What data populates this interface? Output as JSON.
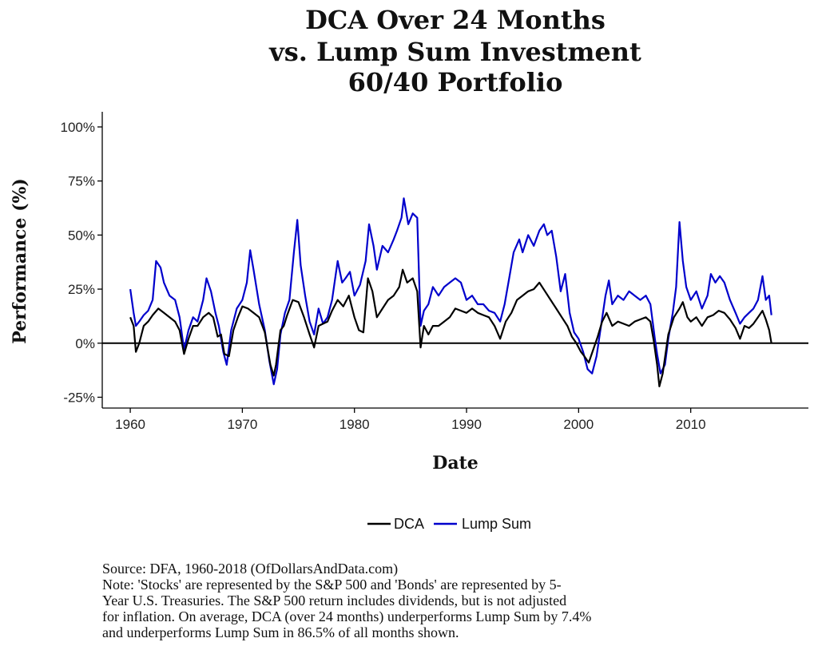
{
  "chart_data": {
    "type": "line",
    "title_lines": [
      "DCA Over 24 Months",
      "vs. Lump Sum Investment",
      "60/40 Portfolio"
    ],
    "xlabel": "Date",
    "ylabel": "Performance (%)",
    "xlim": [
      1957.5,
      2020.5
    ],
    "ylim": [
      -30,
      107
    ],
    "xticks": [
      1960,
      1970,
      1980,
      1990,
      2000,
      2010
    ],
    "xtick_labels": [
      "1960",
      "1970",
      "1980",
      "1990",
      "2000",
      "2010"
    ],
    "yticks": [
      -25,
      0,
      25,
      50,
      75,
      100
    ],
    "ytick_labels": [
      "-25%",
      "0%",
      "25%",
      "50%",
      "75%",
      "100%"
    ],
    "zero_line": true,
    "grid": false,
    "legend_position": "bottom",
    "series": [
      {
        "name": "DCA",
        "color": "#000000",
        "points": [
          [
            1960.0,
            12
          ],
          [
            1960.3,
            8
          ],
          [
            1960.5,
            -4
          ],
          [
            1960.8,
            0
          ],
          [
            1961.2,
            8
          ],
          [
            1961.6,
            10
          ],
          [
            1962.0,
            13
          ],
          [
            1962.5,
            16
          ],
          [
            1963.0,
            14
          ],
          [
            1963.5,
            12
          ],
          [
            1964.0,
            10
          ],
          [
            1964.4,
            6
          ],
          [
            1964.8,
            -5
          ],
          [
            1965.2,
            2
          ],
          [
            1965.6,
            8
          ],
          [
            1966.0,
            8
          ],
          [
            1966.5,
            12
          ],
          [
            1967.0,
            14
          ],
          [
            1967.4,
            12
          ],
          [
            1967.8,
            3
          ],
          [
            1968.1,
            4
          ],
          [
            1968.4,
            -5
          ],
          [
            1968.8,
            -6
          ],
          [
            1969.2,
            6
          ],
          [
            1969.6,
            12
          ],
          [
            1970.0,
            17
          ],
          [
            1970.5,
            16
          ],
          [
            1971.0,
            14
          ],
          [
            1971.5,
            12
          ],
          [
            1972.0,
            5
          ],
          [
            1972.5,
            -10
          ],
          [
            1972.8,
            -15
          ],
          [
            1973.0,
            -10
          ],
          [
            1973.4,
            6
          ],
          [
            1973.7,
            8
          ],
          [
            1974.0,
            13
          ],
          [
            1974.5,
            20
          ],
          [
            1975.0,
            19
          ],
          [
            1975.5,
            12
          ],
          [
            1976.0,
            4
          ],
          [
            1976.4,
            -2
          ],
          [
            1976.8,
            8
          ],
          [
            1977.2,
            9
          ],
          [
            1977.6,
            10
          ],
          [
            1978.0,
            15
          ],
          [
            1978.5,
            20
          ],
          [
            1979.0,
            17
          ],
          [
            1979.5,
            22
          ],
          [
            1980.0,
            12
          ],
          [
            1980.4,
            6
          ],
          [
            1980.8,
            5
          ],
          [
            1981.2,
            30
          ],
          [
            1981.6,
            24
          ],
          [
            1982.0,
            12
          ],
          [
            1982.5,
            16
          ],
          [
            1983.0,
            20
          ],
          [
            1983.5,
            22
          ],
          [
            1984.0,
            26
          ],
          [
            1984.3,
            34
          ],
          [
            1984.7,
            28
          ],
          [
            1985.2,
            30
          ],
          [
            1985.6,
            24
          ],
          [
            1985.9,
            -2
          ],
          [
            1986.2,
            8
          ],
          [
            1986.6,
            4
          ],
          [
            1987.0,
            8
          ],
          [
            1987.5,
            8
          ],
          [
            1988.0,
            10
          ],
          [
            1988.5,
            12
          ],
          [
            1989.0,
            16
          ],
          [
            1989.5,
            15
          ],
          [
            1990.0,
            14
          ],
          [
            1990.5,
            16
          ],
          [
            1991.0,
            14
          ],
          [
            1991.5,
            13
          ],
          [
            1992.0,
            12
          ],
          [
            1992.5,
            8
          ],
          [
            1993.0,
            2
          ],
          [
            1993.5,
            10
          ],
          [
            1994.0,
            14
          ],
          [
            1994.5,
            20
          ],
          [
            1995.0,
            22
          ],
          [
            1995.5,
            24
          ],
          [
            1996.0,
            25
          ],
          [
            1996.5,
            28
          ],
          [
            1997.0,
            24
          ],
          [
            1997.5,
            20
          ],
          [
            1998.0,
            16
          ],
          [
            1998.5,
            12
          ],
          [
            1999.0,
            8
          ],
          [
            1999.4,
            3
          ],
          [
            1999.8,
            0
          ],
          [
            2000.2,
            -4
          ],
          [
            2000.5,
            -6
          ],
          [
            2000.9,
            -9
          ],
          [
            2001.3,
            -3
          ],
          [
            2001.7,
            3
          ],
          [
            2002.1,
            10
          ],
          [
            2002.5,
            14
          ],
          [
            2003.0,
            8
          ],
          [
            2003.5,
            10
          ],
          [
            2004.0,
            9
          ],
          [
            2004.5,
            8
          ],
          [
            2005.0,
            10
          ],
          [
            2005.5,
            11
          ],
          [
            2006.0,
            12
          ],
          [
            2006.4,
            10
          ],
          [
            2006.7,
            1
          ],
          [
            2007.0,
            -10
          ],
          [
            2007.2,
            -20
          ],
          [
            2007.5,
            -14
          ],
          [
            2008.0,
            4
          ],
          [
            2008.5,
            12
          ],
          [
            2009.0,
            16
          ],
          [
            2009.3,
            19
          ],
          [
            2009.7,
            12
          ],
          [
            2010.0,
            10
          ],
          [
            2010.5,
            12
          ],
          [
            2011.0,
            8
          ],
          [
            2011.5,
            12
          ],
          [
            2012.0,
            13
          ],
          [
            2012.5,
            15
          ],
          [
            2013.0,
            14
          ],
          [
            2013.5,
            11
          ],
          [
            2014.0,
            7
          ],
          [
            2014.4,
            2
          ],
          [
            2014.8,
            8
          ],
          [
            2015.2,
            7
          ],
          [
            2015.6,
            9
          ],
          [
            2016.0,
            12
          ],
          [
            2016.4,
            15
          ],
          [
            2016.7,
            11
          ],
          [
            2017.0,
            6
          ],
          [
            2017.2,
            0
          ]
        ]
      },
      {
        "name": "Lump Sum",
        "color": "#0000cc",
        "points": [
          [
            1960.0,
            25
          ],
          [
            1960.3,
            14
          ],
          [
            1960.5,
            8
          ],
          [
            1960.8,
            10
          ],
          [
            1961.2,
            13
          ],
          [
            1961.6,
            15
          ],
          [
            1962.0,
            20
          ],
          [
            1962.3,
            38
          ],
          [
            1962.7,
            35
          ],
          [
            1963.0,
            28
          ],
          [
            1963.5,
            22
          ],
          [
            1964.0,
            20
          ],
          [
            1964.4,
            12
          ],
          [
            1964.8,
            -3
          ],
          [
            1965.2,
            6
          ],
          [
            1965.6,
            12
          ],
          [
            1966.0,
            10
          ],
          [
            1966.5,
            20
          ],
          [
            1966.8,
            30
          ],
          [
            1967.2,
            24
          ],
          [
            1967.6,
            14
          ],
          [
            1967.9,
            8
          ],
          [
            1968.3,
            -4
          ],
          [
            1968.6,
            -10
          ],
          [
            1969.0,
            6
          ],
          [
            1969.5,
            16
          ],
          [
            1970.0,
            20
          ],
          [
            1970.4,
            28
          ],
          [
            1970.7,
            43
          ],
          [
            1971.0,
            34
          ],
          [
            1971.5,
            18
          ],
          [
            1972.0,
            6
          ],
          [
            1972.4,
            -8
          ],
          [
            1972.8,
            -19
          ],
          [
            1973.1,
            -12
          ],
          [
            1973.4,
            4
          ],
          [
            1973.8,
            14
          ],
          [
            1974.2,
            20
          ],
          [
            1974.6,
            42
          ],
          [
            1974.9,
            57
          ],
          [
            1975.2,
            36
          ],
          [
            1975.6,
            22
          ],
          [
            1976.0,
            10
          ],
          [
            1976.4,
            4
          ],
          [
            1976.8,
            16
          ],
          [
            1977.2,
            9
          ],
          [
            1977.6,
            12
          ],
          [
            1978.0,
            20
          ],
          [
            1978.5,
            38
          ],
          [
            1978.9,
            28
          ],
          [
            1979.2,
            30
          ],
          [
            1979.6,
            33
          ],
          [
            1980.0,
            22
          ],
          [
            1980.5,
            27
          ],
          [
            1981.0,
            38
          ],
          [
            1981.3,
            55
          ],
          [
            1981.7,
            45
          ],
          [
            1982.0,
            34
          ],
          [
            1982.5,
            45
          ],
          [
            1983.0,
            42
          ],
          [
            1983.5,
            48
          ],
          [
            1983.8,
            52
          ],
          [
            1984.2,
            58
          ],
          [
            1984.4,
            67
          ],
          [
            1984.8,
            55
          ],
          [
            1985.2,
            60
          ],
          [
            1985.6,
            58
          ],
          [
            1985.9,
            8
          ],
          [
            1986.2,
            15
          ],
          [
            1986.6,
            18
          ],
          [
            1987.0,
            26
          ],
          [
            1987.5,
            22
          ],
          [
            1988.0,
            26
          ],
          [
            1988.5,
            28
          ],
          [
            1989.0,
            30
          ],
          [
            1989.5,
            28
          ],
          [
            1990.0,
            20
          ],
          [
            1990.5,
            22
          ],
          [
            1991.0,
            18
          ],
          [
            1991.5,
            18
          ],
          [
            1992.0,
            15
          ],
          [
            1992.5,
            14
          ],
          [
            1993.0,
            10
          ],
          [
            1993.4,
            18
          ],
          [
            1993.8,
            30
          ],
          [
            1994.2,
            42
          ],
          [
            1994.7,
            48
          ],
          [
            1995.0,
            42
          ],
          [
            1995.5,
            50
          ],
          [
            1996.0,
            45
          ],
          [
            1996.5,
            52
          ],
          [
            1996.9,
            55
          ],
          [
            1997.2,
            50
          ],
          [
            1997.6,
            52
          ],
          [
            1998.0,
            40
          ],
          [
            1998.4,
            24
          ],
          [
            1998.8,
            32
          ],
          [
            1999.2,
            14
          ],
          [
            1999.6,
            5
          ],
          [
            2000.0,
            2
          ],
          [
            2000.4,
            -4
          ],
          [
            2000.8,
            -12
          ],
          [
            2001.2,
            -14
          ],
          [
            2001.6,
            -6
          ],
          [
            2002.0,
            8
          ],
          [
            2002.4,
            22
          ],
          [
            2002.7,
            29
          ],
          [
            2003.0,
            18
          ],
          [
            2003.5,
            22
          ],
          [
            2004.0,
            20
          ],
          [
            2004.5,
            24
          ],
          [
            2005.0,
            22
          ],
          [
            2005.5,
            20
          ],
          [
            2006.0,
            22
          ],
          [
            2006.4,
            18
          ],
          [
            2006.8,
            2
          ],
          [
            2007.0,
            -5
          ],
          [
            2007.3,
            -14
          ],
          [
            2007.7,
            -10
          ],
          [
            2008.0,
            2
          ],
          [
            2008.4,
            14
          ],
          [
            2008.7,
            26
          ],
          [
            2009.0,
            56
          ],
          [
            2009.3,
            38
          ],
          [
            2009.6,
            26
          ],
          [
            2010.0,
            20
          ],
          [
            2010.5,
            24
          ],
          [
            2011.0,
            16
          ],
          [
            2011.5,
            22
          ],
          [
            2011.8,
            32
          ],
          [
            2012.2,
            28
          ],
          [
            2012.6,
            31
          ],
          [
            2013.0,
            28
          ],
          [
            2013.5,
            20
          ],
          [
            2014.0,
            14
          ],
          [
            2014.4,
            9
          ],
          [
            2014.8,
            12
          ],
          [
            2015.2,
            14
          ],
          [
            2015.6,
            16
          ],
          [
            2016.0,
            20
          ],
          [
            2016.4,
            31
          ],
          [
            2016.7,
            20
          ],
          [
            2017.0,
            22
          ],
          [
            2017.2,
            13
          ]
        ]
      }
    ]
  },
  "caption": {
    "source": "Source:  DFA, 1960-2018 (OfDollarsAndData.com)",
    "note_lines": [
      "Note: 'Stocks' are represented by the S&P 500 and 'Bonds' are represented by 5-",
      "Year U.S. Treasuries. The S&P 500 return includes dividends, but is not adjusted",
      "for inflation. On average, DCA (over 24 months) underperforms Lump Sum by 7.4%",
      "and underperforms Lump Sum in 86.5% of all months shown."
    ]
  }
}
